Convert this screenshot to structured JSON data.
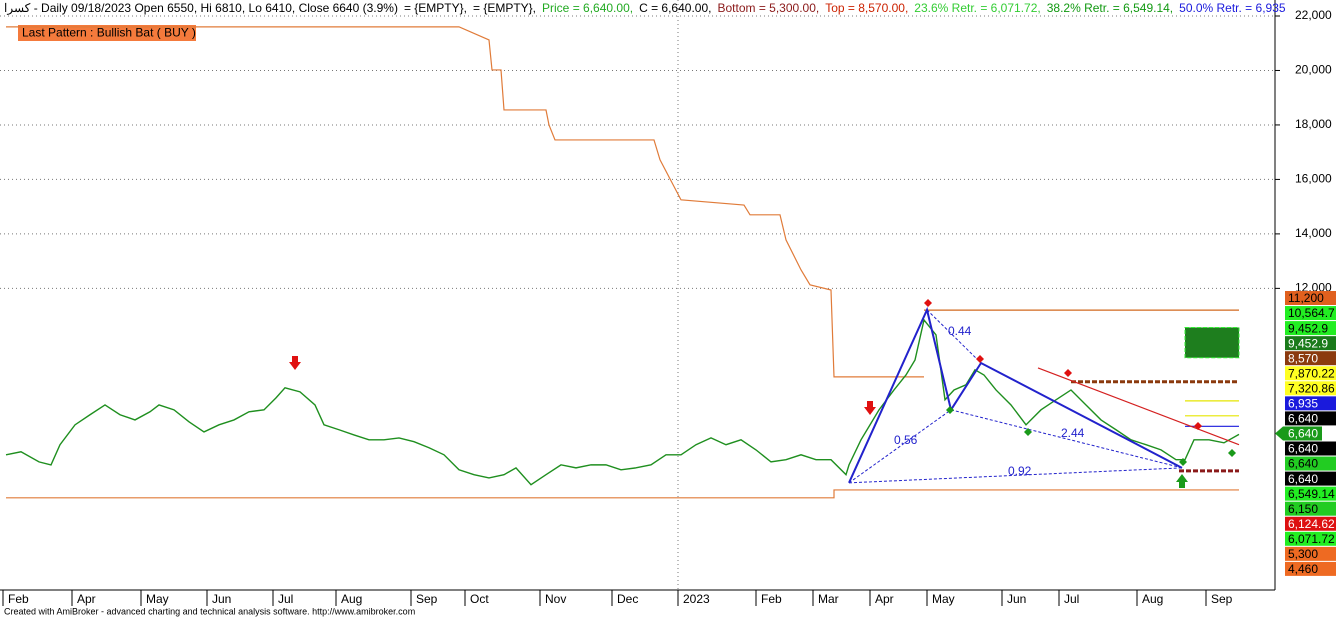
{
  "chart_data": {
    "type": "line",
    "header": [
      {
        "text": "كسرا - Daily 09/18/2023 Open 6550, Hi 6810, Lo 6410, Close 6640 (3.9%)",
        "color": "#000000"
      },
      {
        "text": "= {EMPTY},",
        "color": "#000000"
      },
      {
        "text": "= {EMPTY},",
        "color": "#000000"
      },
      {
        "text": "Price = 6,640.00,",
        "color": "#22aa22"
      },
      {
        "text": "C = 6,640.00,",
        "color": "#000000"
      },
      {
        "text": "Bottom = 5,300.00,",
        "color": "#8b1a1a"
      },
      {
        "text": "Top = 8,570.00,",
        "color": "#cc2200"
      },
      {
        "text": "23.6% Retr. = 6,071.72,",
        "color": "#33cc33"
      },
      {
        "text": "38.2% Retr. = 6,549.14,",
        "color": "#119911"
      },
      {
        "text": "50.0% Retr. = 6,935",
        "color": "#1a1adc"
      }
    ],
    "pattern_label": "Last Pattern : Bullish Bat ( BUY )",
    "ratio_labels": [
      "0.44",
      "0.56",
      "2.44",
      "0.92"
    ],
    "footer": "Created with AmiBroker - advanced charting and technical analysis software. http://www.amibroker.com",
    "xlim": [
      0,
      425
    ],
    "xticks": [
      {
        "value": 1,
        "label": "Feb"
      },
      {
        "value": 24,
        "label": "Apr"
      },
      {
        "value": 47,
        "label": "May"
      },
      {
        "value": 69,
        "label": "Jun"
      },
      {
        "value": 91,
        "label": "Jul"
      },
      {
        "value": 112,
        "label": "Aug"
      },
      {
        "value": 137,
        "label": "Sep"
      },
      {
        "value": 155,
        "label": "Oct"
      },
      {
        "value": 180,
        "label": "Nov"
      },
      {
        "value": 204,
        "label": "Dec"
      },
      {
        "value": 226,
        "label": "2023"
      },
      {
        "value": 252,
        "label": "Feb"
      },
      {
        "value": 271,
        "label": "Mar"
      },
      {
        "value": 290,
        "label": "Apr"
      },
      {
        "value": 309,
        "label": "May"
      },
      {
        "value": 334,
        "label": "Jun"
      },
      {
        "value": 353,
        "label": "Jul"
      },
      {
        "value": 379,
        "label": "Aug"
      },
      {
        "value": 402,
        "label": "Sep"
      }
    ],
    "x_separator_tick": 10,
    "ylim": [
      926,
      22587
    ],
    "yticks": [
      {
        "value": 12000,
        "label": "12,000"
      },
      {
        "value": 14000,
        "label": "14,000"
      },
      {
        "value": 16000,
        "label": "16,000"
      },
      {
        "value": 18000,
        "label": "18,000"
      },
      {
        "value": 20000,
        "label": "20,000"
      },
      {
        "value": 22000,
        "label": "22,000"
      }
    ],
    "grid": true,
    "series": [
      {
        "color": "#e07b39",
        "x": [
          2,
          153,
          163,
          164,
          167,
          168,
          182,
          183,
          185,
          218,
          220,
          227,
          248,
          250,
          260,
          262,
          267,
          270,
          277,
          278,
          308
        ],
        "values": [
          21600,
          21600,
          21120,
          20020,
          20020,
          18550,
          18550,
          18000,
          17450,
          17450,
          16720,
          15250,
          15060,
          14700,
          14700,
          13780,
          12680,
          12130,
          11940,
          8750,
          8750
        ]
      },
      {
        "color": "#e07b39",
        "x": [
          2,
          278,
          278,
          413
        ],
        "values": [
          4310,
          4310,
          4600,
          4600
        ]
      },
      {
        "color": "#1f8f1f",
        "x": [
          2,
          7,
          13,
          17,
          20,
          25,
          30,
          35,
          40,
          45,
          50,
          53,
          58,
          63,
          68,
          73,
          78,
          83,
          88,
          92,
          95,
          100,
          105,
          108,
          113,
          118,
          123,
          128,
          133,
          138,
          143,
          148,
          153,
          158,
          163,
          168,
          172,
          177,
          182,
          187,
          192,
          197,
          202,
          207,
          212,
          217,
          222,
          227,
          232,
          237,
          242,
          247,
          252,
          257,
          262,
          267,
          272,
          277,
          282,
          283,
          287,
          290,
          293,
          298,
          302,
          305,
          308,
          312,
          315,
          318,
          322,
          325,
          328,
          332,
          337,
          342,
          347,
          352,
          357,
          362,
          367,
          372,
          377,
          382,
          387,
          392,
          395,
          398,
          403,
          408,
          413
        ],
        "values": [
          5890,
          6000,
          5630,
          5520,
          6260,
          6990,
          7360,
          7720,
          7360,
          7170,
          7470,
          7720,
          7540,
          7100,
          6730,
          6990,
          7170,
          7470,
          7540,
          7980,
          8350,
          8200,
          7720,
          6990,
          6810,
          6620,
          6440,
          6440,
          6510,
          6370,
          6150,
          5890,
          5340,
          5160,
          5040,
          5160,
          5410,
          4790,
          5160,
          5520,
          5410,
          5520,
          5520,
          5340,
          5410,
          5520,
          5890,
          5890,
          6260,
          6510,
          6260,
          6440,
          6070,
          5630,
          5710,
          5890,
          5710,
          5710,
          5160,
          5520,
          6440,
          6990,
          7540,
          8270,
          8820,
          9370,
          10840,
          10290,
          7910,
          8270,
          8460,
          9010,
          8820,
          8270,
          7720,
          6990,
          7540,
          7910,
          8270,
          7720,
          7170,
          6810,
          6440,
          6260,
          6070,
          5710,
          5710,
          6440,
          6440,
          6330,
          6640
        ]
      }
    ],
    "pattern": {
      "color": "#2222cc",
      "x": [
        283,
        309,
        317,
        327,
        394
      ],
      "values": [
        4860,
        11210,
        7540,
        9260,
        5410
      ]
    },
    "trendline": {
      "color": "#d42020",
      "x": [
        346,
        413
      ],
      "values": [
        9080,
        6260
      ]
    },
    "levels": [
      {
        "value": 11200,
        "color": "#d2691e",
        "x": [
          308,
          413
        ],
        "dashed": false
      },
      {
        "value": 8570,
        "color": "#8b3a0e",
        "x": [
          357,
          413
        ],
        "dashed": true
      },
      {
        "value": 7870.22,
        "color": "#e6e600",
        "x": [
          395,
          413
        ],
        "dashed": false
      },
      {
        "value": 7320.86,
        "color": "#e6e600",
        "x": [
          395,
          413
        ],
        "dashed": false
      },
      {
        "value": 6935,
        "color": "#1a1adc",
        "x": [
          395,
          413
        ],
        "dashed": false
      },
      {
        "value": 5300,
        "color": "#8b1a1a",
        "x": [
          393,
          413
        ],
        "dashed": true
      }
    ],
    "target_zone": {
      "color": "#1e7e1e",
      "x": [
        395,
        413
      ],
      "values": [
        10564.7,
        9452.9
      ]
    },
    "price_labels": {
      "values": [
        11200,
        10564.7,
        9452.9,
        9452.9,
        8570,
        7870.22,
        7320.86,
        6935,
        6640,
        6640,
        6640,
        6640,
        6640,
        6549.14,
        6150,
        6124.62,
        6071.72,
        5300,
        4460
      ],
      "value_labels": [
        "11,200",
        "10,564.7",
        "9,452.9",
        "9,452.9",
        "8,570",
        "7,870.22",
        "7,320.86",
        "6,935",
        "6,640",
        "6,640",
        "6,640",
        "6,640",
        "6,640",
        "6,549.14",
        "6,150",
        "6,124.62",
        "6,071.72",
        "5,300",
        "4,460"
      ],
      "colors": [
        "#e0601e",
        "#22ee22",
        "#22ee22",
        "#1a7a1a",
        "#8b3a0e",
        "#ffff22",
        "#ffff22",
        "#1a1adc",
        "#000000",
        "#1a9a1a",
        "#000000",
        "#22cc22",
        "#000000",
        "#22ee22",
        "#22cc22",
        "#dd1111",
        "#22ee22",
        "#ee6a22",
        "#ee6a22"
      ],
      "text_colors": [
        "#000000",
        "#000000",
        "#000000",
        "#ffffff",
        "#ffffff",
        "#000000",
        "#000000",
        "#ffffff",
        "#ffffff",
        "#ffffff",
        "#ffffff",
        "#000000",
        "#ffffff",
        "#000000",
        "#000000",
        "#ffffff",
        "#000000",
        "#000000",
        "#000000"
      ]
    }
  }
}
